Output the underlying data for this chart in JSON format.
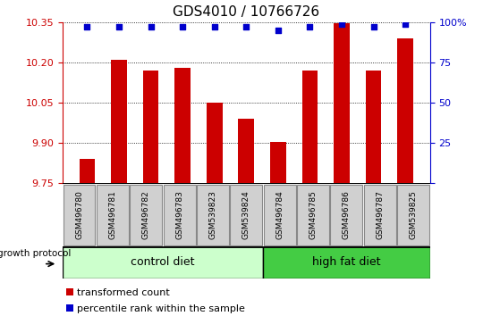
{
  "title": "GDS4010 / 10766726",
  "categories": [
    "GSM496780",
    "GSM496781",
    "GSM496782",
    "GSM496783",
    "GSM539823",
    "GSM539824",
    "GSM496784",
    "GSM496785",
    "GSM496786",
    "GSM496787",
    "GSM539825"
  ],
  "bar_values": [
    9.84,
    10.21,
    10.17,
    10.18,
    10.05,
    9.99,
    9.905,
    10.17,
    10.345,
    10.17,
    10.29
  ],
  "percentile_values": [
    97,
    97,
    97,
    97,
    97,
    97,
    95,
    97,
    99,
    97,
    99
  ],
  "ylim_left": [
    9.75,
    10.35
  ],
  "ylim_right": [
    0,
    100
  ],
  "yticks_left": [
    9.75,
    9.9,
    10.05,
    10.2,
    10.35
  ],
  "yticks_right": [
    0,
    25,
    50,
    75,
    100
  ],
  "bar_color": "#cc0000",
  "dot_color": "#0000cc",
  "grid_color": "#000000",
  "control_color": "#ccffcc",
  "hifat_color": "#44cc44",
  "control_label": "control diet",
  "hifat_label": "high fat diet",
  "growth_label": "growth protocol",
  "legend_bar_label": "transformed count",
  "legend_dot_label": "percentile rank within the sample",
  "n_control": 6,
  "n_hifat": 5,
  "right_axis_color": "#0000cc",
  "left_axis_color": "#cc0000",
  "box_bg": "#d0d0d0",
  "box_border": "#888888"
}
